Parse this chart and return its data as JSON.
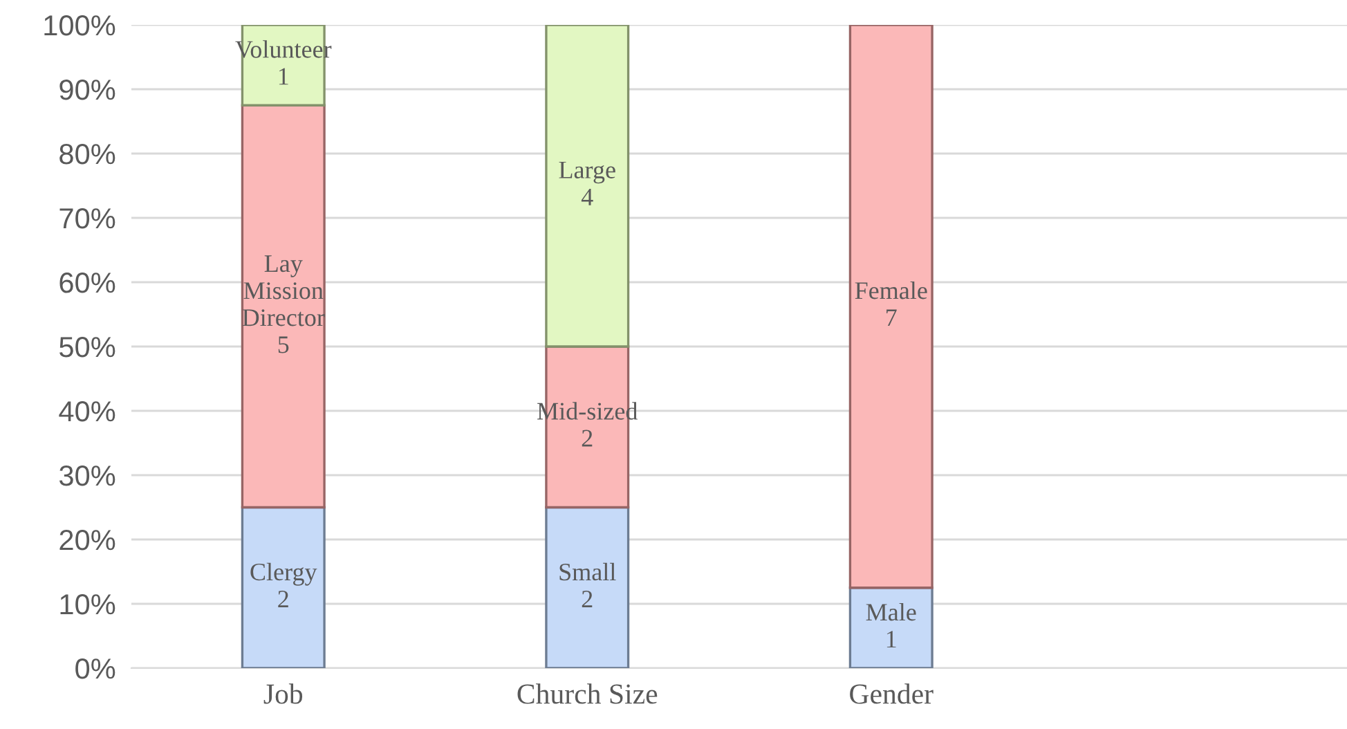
{
  "chart_data": {
    "type": "bar",
    "stacked": true,
    "categories": [
      "Job",
      "Church Size",
      "Gender",
      null
    ],
    "series": [
      {
        "color": "#c6daf8",
        "values": [
          25,
          25,
          12.5,
          null
        ],
        "value_labels": [
          "Clergy\n2",
          "Small\n2",
          "Male\n1",
          null
        ]
      },
      {
        "color": "#fbb8b8",
        "values": [
          62.5,
          25,
          87.5,
          null
        ],
        "value_labels": [
          "Lay\nMission\nDirector\n5",
          "Mid-sized\n2",
          "Female\n7",
          null
        ]
      },
      {
        "color": "#e2f7c2",
        "values": [
          12.5,
          50,
          null,
          null
        ],
        "value_labels": [
          "Volunteer\n1",
          "Large\n4",
          null,
          null
        ]
      }
    ],
    "ylim": [
      0,
      100
    ],
    "yticks": [
      {
        "value": 0,
        "label": "0%"
      },
      {
        "value": 10,
        "label": "10%"
      },
      {
        "value": 20,
        "label": "20%"
      },
      {
        "value": 30,
        "label": "30%"
      },
      {
        "value": 40,
        "label": "40%"
      },
      {
        "value": 50,
        "label": "50%"
      },
      {
        "value": 60,
        "label": "60%"
      },
      {
        "value": 70,
        "label": "70%"
      },
      {
        "value": 80,
        "label": "80%"
      },
      {
        "value": 90,
        "label": "90%"
      },
      {
        "value": 100,
        "label": "100%"
      }
    ],
    "grid": "y",
    "legend": false
  }
}
